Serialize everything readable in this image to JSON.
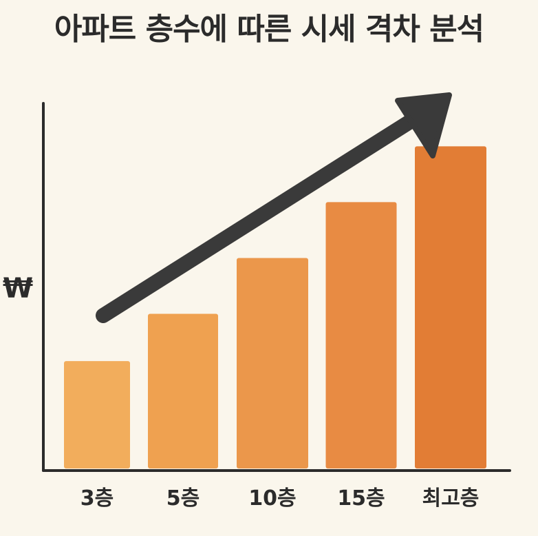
{
  "chart_data": {
    "type": "bar",
    "title": "아파트 층수에 따른 시세 격차 분석",
    "ylabel": "₩",
    "xlabel": "",
    "categories": [
      "3층",
      "5층",
      "10층",
      "15층",
      "최고층"
    ],
    "values": [
      25,
      36,
      49,
      62,
      75
    ],
    "ylim": [
      0,
      85
    ],
    "grid": false,
    "trend_arrow": "up",
    "colors": {
      "bars": [
        "#f2ad5c",
        "#efa150",
        "#eb974b",
        "#e88b43",
        "#e27d35"
      ],
      "axis": "#2b2b2b",
      "arrow": "#3a3a3a",
      "background": "#faf6ec"
    }
  }
}
